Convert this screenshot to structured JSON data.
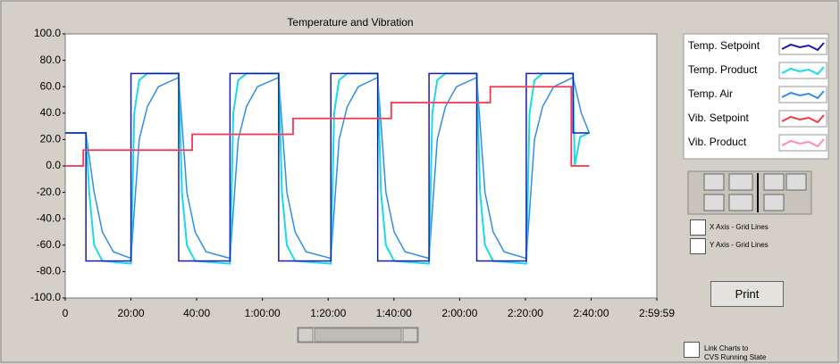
{
  "chart_data": {
    "type": "line",
    "title": "Temperature and Vibration",
    "xlim": [
      0,
      10799
    ],
    "ylim": [
      -100,
      100
    ],
    "grid": false,
    "yticks": [
      {
        "value": 100,
        "label": "100.0"
      },
      {
        "value": 80,
        "label": "80.0"
      },
      {
        "value": 60,
        "label": "60.0"
      },
      {
        "value": 40,
        "label": "40.0"
      },
      {
        "value": 20,
        "label": "20.0"
      },
      {
        "value": 0,
        "label": "0.0"
      },
      {
        "value": -20,
        "label": "-20.0"
      },
      {
        "value": -40,
        "label": "-40.0"
      },
      {
        "value": -60,
        "label": "-60.0"
      },
      {
        "value": -80,
        "label": "-80.0"
      },
      {
        "value": -100,
        "label": "-100.0"
      }
    ],
    "xticks": [
      0,
      {
        "value": 1200,
        "label": "20:00"
      },
      {
        "value": 2400,
        "label": "40:00"
      },
      {
        "value": 3600,
        "label": "1:00:00"
      },
      {
        "value": 4800,
        "label": "1:20:00"
      },
      {
        "value": 6000,
        "label": "1:40:00"
      },
      {
        "value": 7200,
        "label": "2:00:00"
      },
      {
        "value": 8400,
        "label": "2:20:00"
      },
      {
        "value": 9600,
        "label": "2:40:00"
      },
      {
        "value": 10799,
        "label": "2:59:59"
      }
    ],
    "series": [
      {
        "name": "Temp. Air",
        "color": "#2f8fe6",
        "x": [
          0,
          378,
          528,
          678,
          878,
          1200,
          1350,
          1500,
          1700,
          2071,
          2221,
          2371,
          2571,
          3008,
          3158,
          3308,
          3508,
          3896,
          4046,
          4196,
          4396,
          4849,
          4999,
          5149,
          5349,
          5704,
          5854,
          6004,
          6204,
          6641,
          6791,
          6941,
          7141,
          7512,
          7662,
          7812,
          8012,
          8416,
          8566,
          8716,
          8916,
          9271,
          9420,
          9567
        ],
        "values": [
          25,
          25,
          -20,
          -50,
          -65,
          -70,
          20,
          45,
          60,
          67,
          -20,
          -50,
          -65,
          -70,
          20,
          45,
          60,
          67,
          -20,
          -50,
          -65,
          -70,
          20,
          45,
          60,
          67,
          -20,
          -50,
          -65,
          -70,
          20,
          45,
          60,
          67,
          -20,
          -50,
          -65,
          -70,
          20,
          45,
          60,
          67,
          40,
          25
        ]
      },
      {
        "name": "Temp. Product",
        "color": "#19dbe6",
        "x": [
          0,
          378,
          438,
          528,
          678,
          1200,
          1260,
          1350,
          1500,
          2071,
          2131,
          2221,
          2371,
          3008,
          3068,
          3158,
          3308,
          3896,
          3956,
          4046,
          4196,
          4849,
          4909,
          4999,
          5149,
          5704,
          5764,
          5854,
          6004,
          6641,
          6701,
          6791,
          6941,
          7512,
          7572,
          7662,
          7812,
          8416,
          8476,
          8566,
          8716,
          9271,
          9300,
          9400,
          9567
        ],
        "values": [
          25,
          25,
          -20,
          -60,
          -72,
          -74,
          40,
          65,
          70,
          70,
          -20,
          -60,
          -72,
          -74,
          40,
          65,
          70,
          70,
          -20,
          -60,
          -72,
          -74,
          40,
          65,
          70,
          70,
          -20,
          -60,
          -72,
          -74,
          40,
          65,
          70,
          70,
          -20,
          -60,
          -72,
          -74,
          40,
          65,
          70,
          70,
          0,
          22,
          25
        ]
      },
      {
        "name": "Temp. Setpoint",
        "color": "#1c1ca8",
        "x": [
          0,
          378,
          378,
          1200,
          1200,
          2071,
          2071,
          3008,
          3008,
          3896,
          3896,
          4849,
          4849,
          5704,
          5704,
          6641,
          6641,
          7512,
          7512,
          8416,
          8416,
          9271,
          9271,
          9567
        ],
        "values": [
          25,
          25,
          -72,
          -72,
          70,
          70,
          -72,
          -72,
          70,
          70,
          -72,
          -72,
          70,
          70,
          -72,
          -72,
          70,
          70,
          -72,
          -72,
          70,
          70,
          25,
          25
        ]
      },
      {
        "name": "Vib. Product",
        "color": "#ff88bb",
        "x": [
          0,
          329,
          329,
          2318,
          2318,
          4159,
          4159,
          5951,
          5951,
          7759,
          7759,
          9238,
          9238,
          9567
        ],
        "values": [
          0,
          0,
          12,
          12,
          24,
          24,
          36,
          36,
          48,
          48,
          60,
          60,
          0,
          0
        ]
      },
      {
        "name": "Vib. Setpoint",
        "color": "#f03848",
        "x": [
          0,
          329,
          329,
          2318,
          2318,
          4159,
          4159,
          5951,
          5951,
          7759,
          7759,
          9238,
          9238,
          9567
        ],
        "values": [
          0,
          0,
          12,
          12,
          24,
          24,
          36,
          36,
          48,
          48,
          60,
          60,
          0,
          0
        ]
      }
    ]
  },
  "legend_order": [
    2,
    1,
    0,
    4,
    3
  ],
  "controls": {
    "x_grid": "X Axis - Grid Lines",
    "y_grid": "Y Axis - Grid Lines",
    "print": "Print",
    "link": [
      "Link Charts to",
      "CVS Running State"
    ]
  }
}
